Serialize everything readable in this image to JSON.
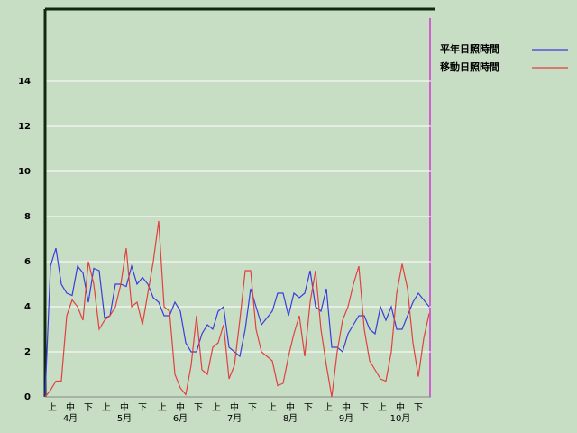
{
  "chart_data": {
    "type": "line",
    "x": [
      0,
      3,
      6,
      9,
      12,
      15,
      18,
      21,
      24,
      27,
      30,
      33,
      36,
      39,
      42,
      45,
      48,
      51,
      54,
      57,
      60,
      63,
      66,
      69,
      72,
      75,
      78,
      81,
      84,
      87,
      90,
      93,
      96,
      99,
      102,
      105,
      108,
      111,
      114,
      117,
      120,
      123,
      126,
      129,
      132,
      135,
      138,
      141,
      144,
      147,
      150,
      153,
      156,
      159,
      162,
      165,
      168,
      171,
      174,
      177,
      180,
      183,
      186,
      189,
      192,
      195,
      198,
      201,
      204,
      207,
      210,
      213
    ],
    "series": [
      {
        "name": "平年日照時間",
        "color": "#3b3bdc",
        "values": [
          0,
          5.8,
          6.6,
          5.0,
          4.6,
          4.5,
          5.8,
          5.5,
          4.2,
          5.7,
          5.6,
          3.5,
          3.6,
          5.0,
          5.0,
          4.9,
          5.8,
          5.0,
          5.3,
          5.0,
          4.4,
          4.2,
          3.6,
          3.6,
          4.2,
          3.8,
          2.4,
          2.0,
          2.0,
          2.8,
          3.2,
          3.0,
          3.8,
          4.0,
          2.2,
          2.0,
          1.8,
          3.0,
          4.8,
          4.0,
          3.2,
          3.5,
          3.8,
          4.6,
          4.6,
          3.6,
          4.6,
          4.4,
          4.6,
          5.6,
          4.0,
          3.8,
          4.8,
          2.2,
          2.2,
          2.0,
          2.8,
          3.2,
          3.6,
          3.6,
          3.0,
          2.8,
          4.0,
          3.4,
          4.0,
          3.0,
          3.0,
          3.6,
          4.2,
          4.6,
          4.3,
          4.0
        ]
      },
      {
        "name": "移動日照時間",
        "color": "#e04040",
        "values": [
          0,
          0.3,
          0.7,
          0.7,
          3.6,
          4.3,
          4.0,
          3.4,
          6.0,
          5.0,
          3.0,
          3.4,
          3.6,
          4.0,
          5.0,
          6.6,
          4.0,
          4.2,
          3.2,
          4.6,
          6.0,
          7.8,
          4.0,
          3.8,
          1.0,
          0.4,
          0.1,
          1.4,
          3.6,
          1.2,
          1.0,
          2.2,
          2.4,
          3.2,
          0.8,
          1.4,
          3.4,
          5.6,
          5.6,
          3.0,
          2.0,
          1.8,
          1.6,
          0.5,
          0.6,
          1.8,
          2.8,
          3.6,
          1.8,
          4.2,
          5.6,
          3.0,
          1.4,
          0.0,
          2.0,
          3.4,
          4.0,
          5.0,
          5.8,
          3.0,
          1.6,
          1.2,
          0.8,
          0.7,
          2.0,
          4.6,
          5.9,
          4.8,
          2.4,
          0.9,
          2.6,
          3.7
        ]
      }
    ],
    "xlim": [
      0,
      214
    ],
    "xticks": [
      {
        "value": 4,
        "label": "上"
      },
      {
        "value": 14,
        "label": "中"
      },
      {
        "value": 24,
        "label": "下"
      },
      {
        "value": 34,
        "label": "上"
      },
      {
        "value": 44,
        "label": "中"
      },
      {
        "value": 54,
        "label": "下"
      },
      {
        "value": 65,
        "label": "上"
      },
      {
        "value": 75,
        "label": "中"
      },
      {
        "value": 85,
        "label": "下"
      },
      {
        "value": 95,
        "label": "上"
      },
      {
        "value": 105,
        "label": "中"
      },
      {
        "value": 115,
        "label": "下"
      },
      {
        "value": 126,
        "label": "上"
      },
      {
        "value": 136,
        "label": "中"
      },
      {
        "value": 146,
        "label": "下"
      },
      {
        "value": 157,
        "label": "上"
      },
      {
        "value": 167,
        "label": "中"
      },
      {
        "value": 177,
        "label": "下"
      },
      {
        "value": 187,
        "label": "上"
      },
      {
        "value": 197,
        "label": "中"
      },
      {
        "value": 207,
        "label": "下"
      }
    ],
    "months": [
      {
        "value": 14,
        "label": "4月"
      },
      {
        "value": 44,
        "label": "5月"
      },
      {
        "value": 75,
        "label": "6月"
      },
      {
        "value": 105,
        "label": "7月"
      },
      {
        "value": 136,
        "label": "8月"
      },
      {
        "value": 167,
        "label": "9月"
      },
      {
        "value": 197,
        "label": "10月"
      }
    ],
    "ylim": [
      0,
      17.2
    ],
    "yticks": [
      0,
      2,
      4,
      6,
      8,
      10,
      12,
      14
    ],
    "grid": true
  }
}
